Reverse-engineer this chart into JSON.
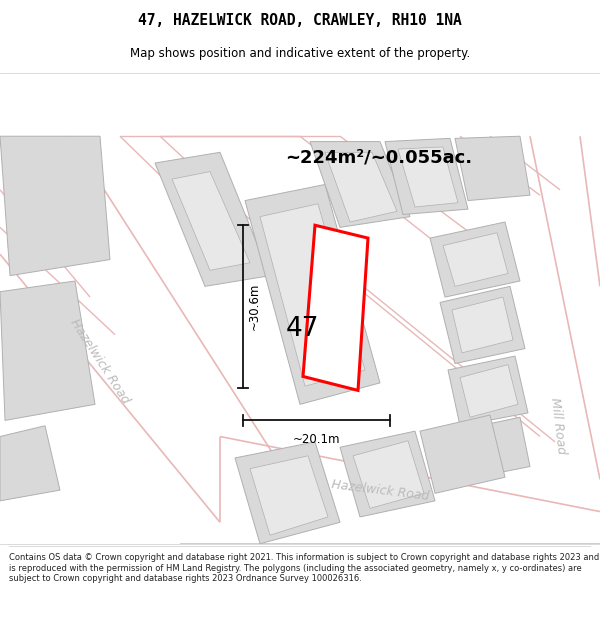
{
  "title": "47, HAZELWICK ROAD, CRAWLEY, RH10 1NA",
  "subtitle": "Map shows position and indicative extent of the property.",
  "area_text": "~224m²/~0.055ac.",
  "label_47": "47",
  "dim_height": "~30.6m",
  "dim_width": "~20.1m",
  "road_label_left": "Hazelwick Road",
  "road_label_bottom": "Hazelwick Road",
  "road_label_right": "Mill Road",
  "footer": "Contains OS data © Crown copyright and database right 2021. This information is subject to Crown copyright and database rights 2023 and is reproduced with the permission of HM Land Registry. The polygons (including the associated geometry, namely x, y co-ordinates) are subject to Crown copyright and database rights 2023 Ordnance Survey 100026316.",
  "map_bg": "#f7f4f4",
  "building_fill": "#d9d9d9",
  "building_edge": "#b0b0b0",
  "road_outline_color": "#e8b8b8",
  "highlight_color": "#ff0000",
  "dim_line_color": "#111111",
  "road_text_color": "#bbbbbb"
}
